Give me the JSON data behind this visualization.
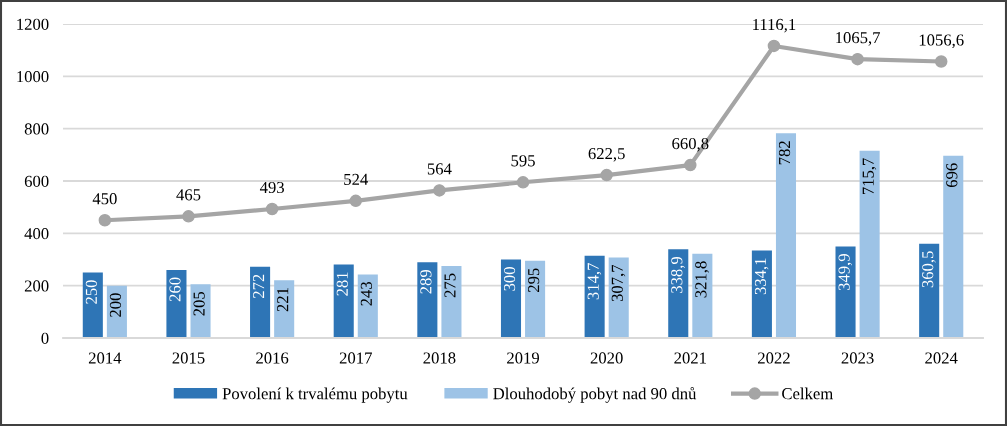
{
  "chart_data": {
    "type": "bar",
    "categories": [
      "2014",
      "2015",
      "2016",
      "2017",
      "2018",
      "2019",
      "2020",
      "2021",
      "2022",
      "2023",
      "2024"
    ],
    "series": [
      {
        "name": "Povolení k trvalému pobytu",
        "color": "#2e75b6",
        "values": [
          250,
          260,
          272,
          281,
          289,
          300,
          314.7,
          338.9,
          334.1,
          349.9,
          360.5
        ],
        "value_labels": [
          "250",
          "260",
          "272",
          "281",
          "289",
          "300",
          "314,7",
          "338,9",
          "334,1",
          "349,9",
          "360,5"
        ]
      },
      {
        "name": "Dlouhodobý pobyt nad 90 dnů",
        "color": "#9dc3e6",
        "values": [
          200,
          205,
          221,
          243,
          275,
          295,
          307.7,
          321.8,
          782,
          715.7,
          696
        ],
        "value_labels": [
          "200",
          "205",
          "221",
          "243",
          "275",
          "295",
          "307,7",
          "321,8",
          "782",
          "715,7",
          "696"
        ]
      },
      {
        "name": "Celkem",
        "type": "line",
        "color": "#a5a5a5",
        "marker": "circle",
        "line_style": "solid",
        "values": [
          450,
          465,
          493,
          524,
          564,
          595,
          622.5,
          660.8,
          1116.1,
          1065.7,
          1056.6
        ],
        "value_labels": [
          "450",
          "465",
          "493",
          "524",
          "564",
          "595",
          "622,5",
          "660,8",
          "1116,1",
          "1065,7",
          "1056,6"
        ]
      }
    ],
    "ylim": [
      0,
      1200
    ],
    "yticks": [
      0,
      200,
      400,
      600,
      800,
      1000,
      1200
    ],
    "grid": "y",
    "legend": "bottom"
  }
}
